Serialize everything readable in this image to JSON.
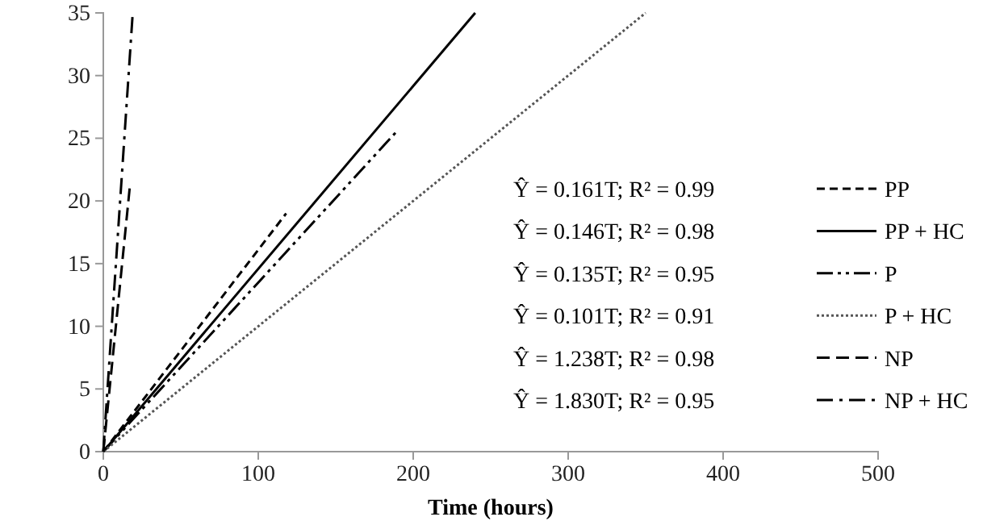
{
  "chart_data": {
    "type": "line",
    "xlabel": "Time (hours)",
    "xlim": [
      0,
      500
    ],
    "xticks": [
      0,
      100,
      200,
      300,
      400,
      500
    ],
    "ylim": [
      0,
      35
    ],
    "yticks": [
      0,
      5,
      10,
      15,
      20,
      25,
      30,
      35
    ],
    "grid": false,
    "legend": "right",
    "marker": "none",
    "series": [
      {
        "name": "PP",
        "color": "#000000",
        "line_style": "dashed",
        "x": [
          0,
          118
        ],
        "values": [
          0,
          19
        ]
      },
      {
        "name": "PP + HC",
        "color": "#000000",
        "line_style": "solid",
        "x": [
          0,
          240
        ],
        "values": [
          0,
          35
        ]
      },
      {
        "name": "P",
        "color": "#000000",
        "line_style": "dashed",
        "x": [
          0,
          189
        ],
        "values": [
          0,
          25.5
        ]
      },
      {
        "name": "P + HC",
        "color": "#555555",
        "line_style": "dotted",
        "x": [
          0,
          350
        ],
        "values": [
          0,
          35
        ]
      },
      {
        "name": "NP",
        "color": "#000000",
        "line_style": "dashed",
        "x": [
          0,
          17
        ],
        "values": [
          0,
          21
        ]
      },
      {
        "name": "NP + HC",
        "color": "#000000",
        "line_style": "dashed",
        "x": [
          0,
          19
        ],
        "values": [
          0,
          35
        ]
      }
    ],
    "annotations": [
      "Ŷ = 0.161T; R² = 0.99",
      "Ŷ = 0.146T; R² = 0.98",
      "Ŷ = 0.135T; R² = 0.95",
      "Ŷ = 0.101T; R² = 0.91",
      "Ŷ = 1.238T; R² = 0.98",
      "Ŷ = 1.830T; R² = 0.95"
    ]
  }
}
